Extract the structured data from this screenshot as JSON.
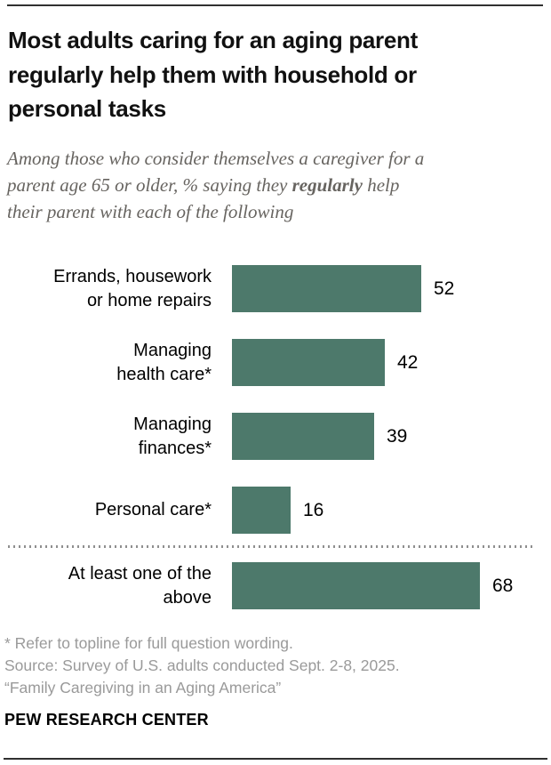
{
  "header": {
    "title_lines": [
      "Most adults caring for an aging parent",
      "regularly help them with household or",
      "personal tasks"
    ],
    "subtitle": {
      "line1": "Among those who consider themselves a caregiver for a",
      "line2_prefix": "parent age 65 or older, % saying they ",
      "line2_bold": "regularly",
      "line2_suffix": " help",
      "line3": "their parent with each of the following"
    }
  },
  "chart_data": {
    "type": "bar",
    "orientation": "horizontal",
    "unit": "%",
    "categories": [
      "Errands, housework or home repairs",
      "Managing health care*",
      "Managing finances*",
      "Personal care*",
      "At least one of the above"
    ],
    "values": [
      52,
      42,
      39,
      16,
      68
    ],
    "xlim": [
      0,
      100
    ],
    "bar_color": "#4d796b",
    "grid": false,
    "legend": false,
    "separator_before_last_row": true,
    "rows": [
      {
        "label_lines": [
          "Errands, housework",
          "or home repairs"
        ]
      },
      {
        "label_lines": [
          "Managing",
          "health care*"
        ]
      },
      {
        "label_lines": [
          "Managing",
          "finances*"
        ]
      },
      {
        "label_lines": [
          "Personal care*"
        ]
      },
      {
        "label_lines": [
          "At least one of the",
          "above"
        ]
      }
    ]
  },
  "footer": {
    "footnote": "* Refer to topline for full question wording.",
    "source": "Source: Survey of U.S. adults conducted Sept. 2-8, 2025.",
    "report_title": "“Family Caregiving in an Aging America”",
    "brand": "PEW RESEARCH CENTER"
  }
}
